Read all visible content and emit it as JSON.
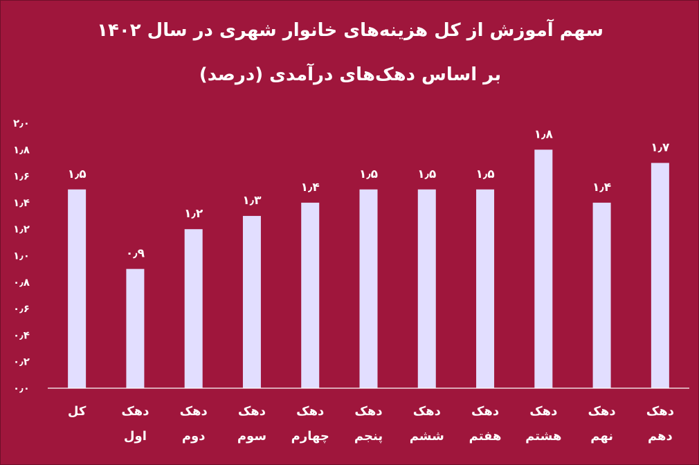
{
  "chart_data": {
    "type": "bar",
    "title": "سهم آموزش از کل هزینه‌های خانوار شهری در سال ۱۴۰۲",
    "subtitle": "بر اساس دهک‌های درآمدی (درصد)",
    "categories": [
      [
        "کل"
      ],
      [
        "دهک",
        "اول"
      ],
      [
        "دهک",
        "دوم"
      ],
      [
        "دهک",
        "سوم"
      ],
      [
        "دهک",
        "چهارم"
      ],
      [
        "دهک",
        "پنجم"
      ],
      [
        "دهک",
        "ششم"
      ],
      [
        "دهک",
        "هفتم"
      ],
      [
        "دهک",
        "هشتم"
      ],
      [
        "دهک",
        "نهم"
      ],
      [
        "دهک",
        "دهم"
      ]
    ],
    "values": [
      1.5,
      0.9,
      1.2,
      1.3,
      1.4,
      1.5,
      1.5,
      1.5,
      1.8,
      1.4,
      1.7
    ],
    "data_labels": [
      "۱٫۵",
      "۰٫۹",
      "۱٫۲",
      "۱٫۳",
      "۱٫۴",
      "۱٫۵",
      "۱٫۵",
      "۱٫۵",
      "۱٫۸",
      "۱٫۴",
      "۱٫۷"
    ],
    "ylim": [
      0,
      2.0
    ],
    "y_ticks": [
      0,
      0.2,
      0.4,
      0.6,
      0.8,
      1.0,
      1.2,
      1.4,
      1.6,
      1.8,
      2.0
    ],
    "y_tick_labels": [
      "۰٫۰",
      "۰٫۲",
      "۰٫۴",
      "۰٫۶",
      "۰٫۸",
      "۱٫۰",
      "۱٫۲",
      "۱٫۴",
      "۱٫۶",
      "۱٫۸",
      "۲٫۰"
    ],
    "grid": false,
    "legend": "none",
    "colors": {
      "background": "#9f163c",
      "bar": "#e2deff",
      "text": "#ffffff"
    }
  }
}
